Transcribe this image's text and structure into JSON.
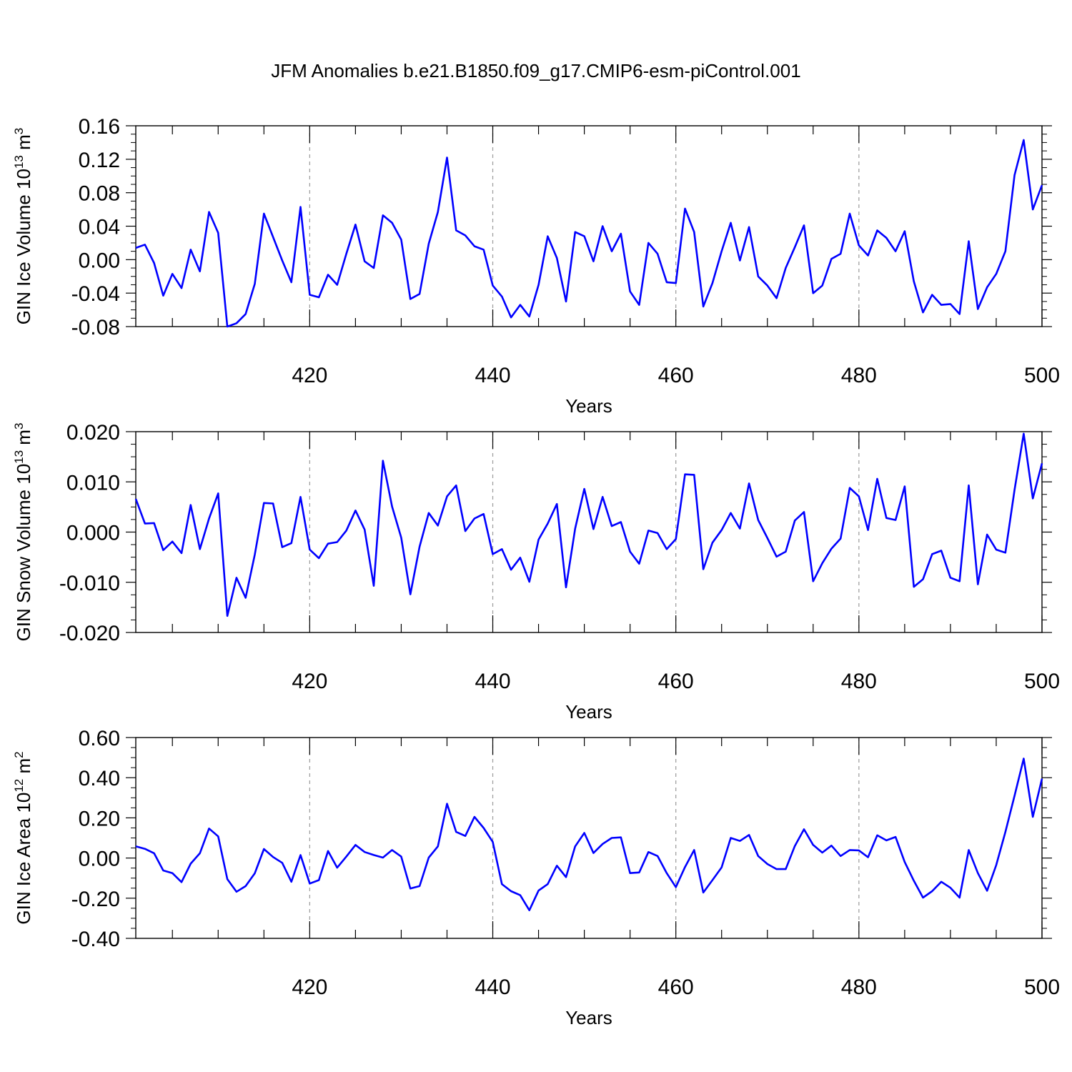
{
  "title": "JFM Anomalies b.e21.B1850.f09_g17.CMIP6-esm-piControl.001",
  "colors": {
    "line": "#0000ff",
    "axis": "#000000",
    "grid": "#999999"
  },
  "chart_data": [
    {
      "type": "line",
      "title": "JFM Anomalies b.e21.B1850.f09_g17.CMIP6-esm-piControl.001",
      "ylabel_main": "GIN Ice Volume 10",
      "ylabel_sup": "13",
      "ylabel_tail": " m",
      "ylabel_sup2": "3",
      "xlabel": "Years",
      "xlim": [
        401,
        500
      ],
      "ylim": [
        -0.08,
        0.16
      ],
      "xticks": [
        420,
        440,
        460,
        480,
        500
      ],
      "xtick_labels": [
        "420",
        "440",
        "460",
        "480",
        "500"
      ],
      "yticks": [
        -0.08,
        -0.04,
        0.0,
        0.04,
        0.08,
        0.12,
        0.16
      ],
      "ytick_labels": [
        "-0.08",
        "-0.04",
        "0.00",
        "0.04",
        "0.08",
        "0.12",
        "0.16"
      ],
      "grid": "vertical dashed at major x ticks",
      "series": [
        {
          "name": "GIN Ice Volume",
          "color": "#0000ff",
          "x_start": 401,
          "values": [
            0.014,
            0.018,
            -0.004,
            -0.043,
            -0.017,
            -0.034,
            0.012,
            -0.014,
            0.057,
            0.032,
            -0.08,
            -0.076,
            -0.065,
            -0.029,
            0.055,
            0.027,
            -0.001,
            -0.027,
            0.063,
            -0.042,
            -0.045,
            -0.018,
            -0.03,
            0.007,
            0.042,
            -0.002,
            -0.01,
            0.053,
            0.044,
            0.024,
            -0.047,
            -0.041,
            0.019,
            0.057,
            0.122,
            0.035,
            0.029,
            0.016,
            0.012,
            -0.031,
            -0.044,
            -0.069,
            -0.054,
            -0.068,
            -0.03,
            0.028,
            0.002,
            -0.05,
            0.033,
            0.028,
            -0.002,
            0.04,
            0.01,
            0.031,
            -0.038,
            -0.054,
            0.02,
            0.007,
            -0.027,
            -0.028,
            0.061,
            0.033,
            -0.056,
            -0.028,
            0.01,
            0.044,
            -0.001,
            0.039,
            -0.02,
            -0.031,
            -0.046,
            -0.01,
            0.015,
            0.041,
            -0.04,
            -0.031,
            0.001,
            0.007,
            0.055,
            0.017,
            0.005,
            0.035,
            0.026,
            0.01,
            0.034,
            -0.026,
            -0.063,
            -0.042,
            -0.054,
            -0.053,
            -0.065,
            0.022,
            -0.059,
            -0.033,
            -0.017,
            0.01,
            0.101,
            0.143,
            0.06,
            0.089
          ]
        }
      ]
    },
    {
      "type": "line",
      "ylabel_main": "GIN Snow Volume 10",
      "ylabel_sup": "13",
      "ylabel_tail": " m",
      "ylabel_sup2": "3",
      "xlabel": "Years",
      "xlim": [
        401,
        500
      ],
      "ylim": [
        -0.02,
        0.02
      ],
      "xticks": [
        420,
        440,
        460,
        480,
        500
      ],
      "xtick_labels": [
        "420",
        "440",
        "460",
        "480",
        "500"
      ],
      "yticks": [
        -0.02,
        -0.01,
        0.0,
        0.01,
        0.02
      ],
      "ytick_labels": [
        "-0.020",
        "-0.010",
        "0.000",
        "0.010",
        "0.020"
      ],
      "grid": "vertical dashed at major x ticks",
      "series": [
        {
          "name": "GIN Snow Volume",
          "color": "#0000ff",
          "x_start": 401,
          "values": [
            0.0066,
            0.0017,
            0.0018,
            -0.0036,
            -0.0019,
            -0.0042,
            0.0054,
            -0.0034,
            0.0027,
            0.0077,
            -0.0167,
            -0.0091,
            -0.0131,
            -0.0045,
            0.0058,
            0.0057,
            -0.003,
            -0.0022,
            0.007,
            -0.0035,
            -0.0052,
            -0.0023,
            -0.002,
            0.0003,
            0.0043,
            0.0005,
            -0.0107,
            0.0142,
            0.0051,
            -0.0011,
            -0.0124,
            -0.0029,
            0.0038,
            0.0013,
            0.0071,
            0.0093,
            0.0002,
            0.0027,
            0.0036,
            -0.0044,
            -0.0034,
            -0.0075,
            -0.0051,
            -0.0099,
            -0.0015,
            0.0017,
            0.0056,
            -0.011,
            0.0007,
            0.0086,
            0.0006,
            0.007,
            0.0012,
            0.002,
            -0.0039,
            -0.0063,
            0.0003,
            -0.0002,
            -0.0034,
            -0.0014,
            0.0115,
            0.0114,
            -0.0074,
            -0.0021,
            0.0004,
            0.0038,
            0.0007,
            0.0097,
            0.0024,
            -0.0012,
            -0.0049,
            -0.0039,
            0.0023,
            0.004,
            -0.0098,
            -0.0062,
            -0.0033,
            -0.0013,
            0.0088,
            0.0071,
            0.0004,
            0.0106,
            0.0028,
            0.0024,
            0.0091,
            -0.0109,
            -0.0094,
            -0.0044,
            -0.0037,
            -0.0091,
            -0.0098,
            0.0093,
            -0.0104,
            -0.0005,
            -0.0035,
            -0.0041,
            0.0084,
            0.0196,
            0.0067,
            0.0137
          ]
        }
      ]
    },
    {
      "type": "line",
      "ylabel_main": "GIN Ice Area 10",
      "ylabel_sup": "12",
      "ylabel_tail": " m",
      "ylabel_sup2": "2",
      "xlabel": "Years",
      "xlim": [
        401,
        500
      ],
      "ylim": [
        -0.4,
        0.6
      ],
      "xticks": [
        420,
        440,
        460,
        480,
        500
      ],
      "xtick_labels": [
        "420",
        "440",
        "460",
        "480",
        "500"
      ],
      "yticks": [
        -0.4,
        -0.2,
        0.0,
        0.2,
        0.4,
        0.6
      ],
      "ytick_labels": [
        "-0.40",
        "-0.20",
        "0.00",
        "0.20",
        "0.40",
        "0.60"
      ],
      "grid": "vertical dashed at major x ticks",
      "series": [
        {
          "name": "GIN Ice Area",
          "color": "#0000ff",
          "x_start": 401,
          "values": [
            0.058,
            0.046,
            0.024,
            -0.062,
            -0.075,
            -0.12,
            -0.028,
            0.024,
            0.147,
            0.108,
            -0.105,
            -0.168,
            -0.14,
            -0.076,
            0.045,
            0.005,
            -0.024,
            -0.118,
            0.015,
            -0.127,
            -0.11,
            0.035,
            -0.048,
            0.007,
            0.065,
            0.03,
            0.015,
            0.002,
            0.04,
            0.007,
            -0.152,
            -0.14,
            0.002,
            0.058,
            0.27,
            0.13,
            0.11,
            0.205,
            0.15,
            0.08,
            -0.13,
            -0.165,
            -0.185,
            -0.26,
            -0.162,
            -0.13,
            -0.038,
            -0.095,
            0.058,
            0.125,
            0.025,
            0.07,
            0.1,
            0.103,
            -0.075,
            -0.072,
            0.03,
            0.01,
            -0.075,
            -0.145,
            -0.045,
            0.04,
            -0.172,
            -0.11,
            -0.047,
            0.1,
            0.085,
            0.115,
            0.01,
            -0.03,
            -0.055,
            -0.055,
            0.06,
            0.143,
            0.065,
            0.027,
            0.062,
            0.01,
            0.04,
            0.038,
            0.004,
            0.113,
            0.088,
            0.105,
            -0.02,
            -0.113,
            -0.197,
            -0.165,
            -0.118,
            -0.148,
            -0.197,
            0.04,
            -0.075,
            -0.163,
            -0.035,
            0.13,
            0.31,
            0.495,
            0.205,
            0.395
          ]
        }
      ]
    }
  ]
}
